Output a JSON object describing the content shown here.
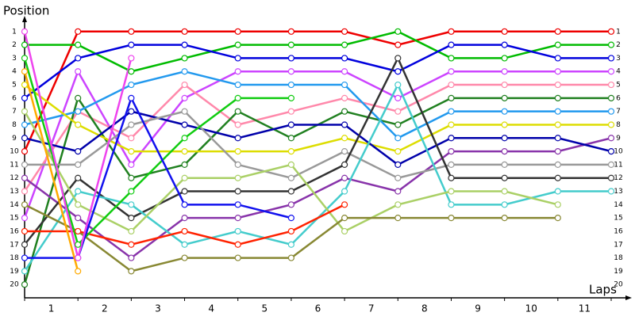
{
  "chart_data": {
    "type": "line",
    "y_label": "Position",
    "x_label": "Laps",
    "x": [
      0,
      1,
      2,
      3,
      4,
      5,
      6,
      7,
      8,
      9,
      10,
      11
    ],
    "xlim": [
      0,
      11
    ],
    "ylim": [
      0,
      21
    ],
    "y_inverted": true,
    "xticks": [
      {
        "value": 0.5,
        "label": "1"
      },
      {
        "value": 1.5,
        "label": "2"
      },
      {
        "value": 2.5,
        "label": "3"
      },
      {
        "value": 3.5,
        "label": "4"
      },
      {
        "value": 4.5,
        "label": "5"
      },
      {
        "value": 5.5,
        "label": "6"
      },
      {
        "value": 6.5,
        "label": "7"
      },
      {
        "value": 7.5,
        "label": "8"
      },
      {
        "value": 8.5,
        "label": "9"
      },
      {
        "value": 9.5,
        "label": "10"
      },
      {
        "value": 10.5,
        "label": "11"
      }
    ],
    "yticks": [
      1,
      2,
      3,
      4,
      5,
      6,
      7,
      8,
      9,
      10,
      11,
      12,
      13,
      14,
      15,
      16,
      17,
      18,
      19,
      20
    ],
    "series": [
      {
        "color": "#ee0000",
        "values": [
          10,
          1,
          1,
          1,
          1,
          1,
          1,
          2,
          1,
          1,
          1,
          1
        ]
      },
      {
        "color": "#00bb00",
        "values": [
          2,
          2,
          4,
          3,
          2,
          2,
          2,
          1,
          3,
          3,
          2,
          2
        ]
      },
      {
        "color": "#0000dd",
        "values": [
          6,
          3,
          2,
          2,
          3,
          3,
          3,
          4,
          2,
          2,
          3,
          3
        ]
      },
      {
        "color": "#cc44ff",
        "values": [
          15,
          4,
          11,
          6,
          4,
          4,
          4,
          6,
          4,
          4,
          4,
          4
        ]
      },
      {
        "color": "#ff88aa",
        "values": [
          13,
          7,
          9,
          5,
          8,
          7,
          6,
          7,
          5,
          5,
          5,
          5
        ]
      },
      {
        "color": "#208020",
        "values": [
          20,
          6,
          12,
          11,
          7,
          9,
          7,
          8,
          6,
          6,
          6,
          6
        ]
      },
      {
        "color": "#2299ee",
        "values": [
          8,
          7,
          5,
          4,
          5,
          5,
          5,
          9,
          7,
          7,
          7,
          7
        ]
      },
      {
        "color": "#dddd00",
        "values": [
          5,
          8,
          10,
          10,
          10,
          10,
          9,
          10,
          8,
          8,
          8,
          8
        ]
      },
      {
        "color": "#8833aa",
        "values": [
          12,
          15,
          18,
          15,
          15,
          14,
          12,
          13,
          10,
          10,
          10,
          9
        ]
      },
      {
        "color": "#0000aa",
        "values": [
          9,
          10,
          7,
          8,
          9,
          8,
          8,
          11,
          9,
          9,
          9,
          10
        ]
      },
      {
        "color": "#999999",
        "values": [
          11,
          11,
          8,
          7,
          11,
          12,
          10,
          12,
          11,
          11,
          11,
          11
        ]
      },
      {
        "color": "#333333",
        "values": [
          17,
          12,
          15,
          13,
          13,
          13,
          11,
          3,
          12,
          12,
          12,
          12
        ]
      },
      {
        "color": "#44cccc",
        "values": [
          19,
          13,
          14,
          17,
          16,
          17,
          13,
          5,
          14,
          14,
          13,
          13
        ]
      },
      {
        "color": "#aad066",
        "values": [
          7,
          14,
          16,
          12,
          12,
          11,
          16,
          14,
          13,
          13,
          14,
          null
        ]
      },
      {
        "color": "#888833",
        "values": [
          14,
          16,
          19,
          18,
          18,
          18,
          15,
          15,
          15,
          15,
          15,
          null
        ]
      },
      {
        "color": "#ff2200",
        "values": [
          16,
          16,
          17,
          16,
          17,
          16,
          14,
          null,
          null,
          null,
          null,
          null
        ]
      },
      {
        "color": "#11cc11",
        "values": [
          3,
          17,
          13,
          9,
          6,
          6,
          null,
          null,
          null,
          null,
          null,
          null
        ]
      },
      {
        "color": "#1111ee",
        "values": [
          18,
          18,
          6,
          14,
          14,
          15,
          null,
          null,
          null,
          null,
          null,
          null
        ]
      },
      {
        "color": "#ee44ee",
        "values": [
          1,
          18,
          3,
          null,
          null,
          null,
          null,
          null,
          null,
          null,
          null,
          null
        ]
      },
      {
        "color": "#ffaa00",
        "values": [
          4,
          19,
          null,
          null,
          null,
          null,
          null,
          null,
          null,
          null,
          null,
          null
        ]
      }
    ]
  }
}
